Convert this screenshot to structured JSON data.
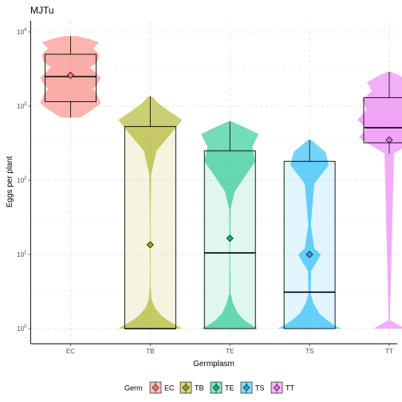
{
  "chart_data": {
    "type": "violin-box",
    "title": "MJTu",
    "xlabel": "Germplasm",
    "ylabel": "Eggs per plant",
    "y_scale": "log10",
    "ylim": [
      1,
      10000
    ],
    "y_ticks": [
      {
        "value": 1,
        "base": "10",
        "exp": "0"
      },
      {
        "value": 10,
        "base": "10",
        "exp": "1"
      },
      {
        "value": 100,
        "base": "10",
        "exp": "2"
      },
      {
        "value": 1000,
        "base": "10",
        "exp": "3"
      },
      {
        "value": 10000,
        "base": "10",
        "exp": "4"
      }
    ],
    "grid": true,
    "legend": {
      "title": "Germ",
      "position": "bottom",
      "entries": [
        "EC",
        "TB",
        "TE",
        "TS",
        "TT"
      ]
    },
    "categories": [
      "EC",
      "TB",
      "TE",
      "TS",
      "TT"
    ],
    "series": [
      {
        "category": "EC",
        "color": "#F8766D",
        "box": {
          "q1": 1150,
          "median": 2500,
          "q3": 5000,
          "whisker_low": 700,
          "whisker_high": 8800
        },
        "mean": 2600,
        "violin": [
          [
            700,
            0.3
          ],
          [
            900,
            0.7
          ],
          [
            1100,
            0.95
          ],
          [
            1400,
            0.85
          ],
          [
            1700,
            0.7
          ],
          [
            2000,
            0.85
          ],
          [
            2400,
            0.95
          ],
          [
            2800,
            0.8
          ],
          [
            3300,
            0.6
          ],
          [
            4000,
            0.85
          ],
          [
            5000,
            0.9
          ],
          [
            6000,
            0.7
          ],
          [
            7200,
            0.9
          ],
          [
            8000,
            0.6
          ],
          [
            8800,
            0.2
          ]
        ]
      },
      {
        "category": "TB",
        "color": "#A3A500",
        "box": {
          "q1": 1,
          "median": 1,
          "q3": 530,
          "whisker_low": 1,
          "whisker_high": 1350
        },
        "mean": 13.5,
        "violin": [
          [
            1,
            1.0
          ],
          [
            1.1,
            0.85
          ],
          [
            1.25,
            0.6
          ],
          [
            1.5,
            0.35
          ],
          [
            1.9,
            0.15
          ],
          [
            2.5,
            0.04
          ],
          [
            4,
            0.01
          ],
          [
            30,
            0.01
          ],
          [
            120,
            0.03
          ],
          [
            250,
            0.2
          ],
          [
            450,
            0.7
          ],
          [
            650,
            1.0
          ],
          [
            850,
            0.6
          ],
          [
            1100,
            0.25
          ],
          [
            1350,
            0.05
          ]
        ]
      },
      {
        "category": "TE",
        "color": "#00BF7D",
        "box": {
          "q1": 1,
          "median": 10.5,
          "q3": 250,
          "whisker_low": 1,
          "whisker_high": 620
        },
        "mean": 16.5,
        "violin": [
          [
            1,
            0.9
          ],
          [
            1.1,
            0.7
          ],
          [
            1.3,
            0.45
          ],
          [
            1.6,
            0.25
          ],
          [
            2.2,
            0.1
          ],
          [
            3,
            0.02
          ],
          [
            10,
            0.01
          ],
          [
            40,
            0.02
          ],
          [
            70,
            0.15
          ],
          [
            110,
            0.45
          ],
          [
            180,
            0.8
          ],
          [
            280,
            0.7
          ],
          [
            420,
            0.9
          ],
          [
            520,
            0.45
          ],
          [
            620,
            0.05
          ]
        ]
      },
      {
        "category": "TS",
        "color": "#00B0F6",
        "box": {
          "q1": 1,
          "median": 3.1,
          "q3": 180,
          "whisker_low": 1,
          "whisker_high": 350
        },
        "mean": 10,
        "violin": [
          [
            1,
            1.0
          ],
          [
            1.1,
            0.8
          ],
          [
            1.3,
            0.55
          ],
          [
            1.6,
            0.3
          ],
          [
            2.2,
            0.12
          ],
          [
            3,
            0.03
          ],
          [
            6,
            0.05
          ],
          [
            9,
            0.3
          ],
          [
            10,
            0.35
          ],
          [
            12,
            0.15
          ],
          [
            25,
            0.04
          ],
          [
            90,
            0.15
          ],
          [
            160,
            0.6
          ],
          [
            240,
            0.5
          ],
          [
            350,
            0.05
          ]
        ]
      },
      {
        "category": "TT",
        "color": "#E76BF3",
        "box": {
          "q1": 320,
          "median": 510,
          "q3": 1300,
          "whisker_low": 230,
          "whisker_high": 2900
        },
        "mean": 350,
        "violin": [
          [
            1,
            0.5
          ],
          [
            1.15,
            0.25
          ],
          [
            1.3,
            0.02
          ],
          [
            230,
            0.15
          ],
          [
            300,
            0.6
          ],
          [
            380,
            0.95
          ],
          [
            500,
            0.7
          ],
          [
            650,
            1.0
          ],
          [
            900,
            0.7
          ],
          [
            1200,
            0.85
          ],
          [
            1600,
            0.55
          ],
          [
            2100,
            0.7
          ],
          [
            2600,
            0.3
          ],
          [
            2900,
            0.05
          ]
        ]
      }
    ]
  }
}
